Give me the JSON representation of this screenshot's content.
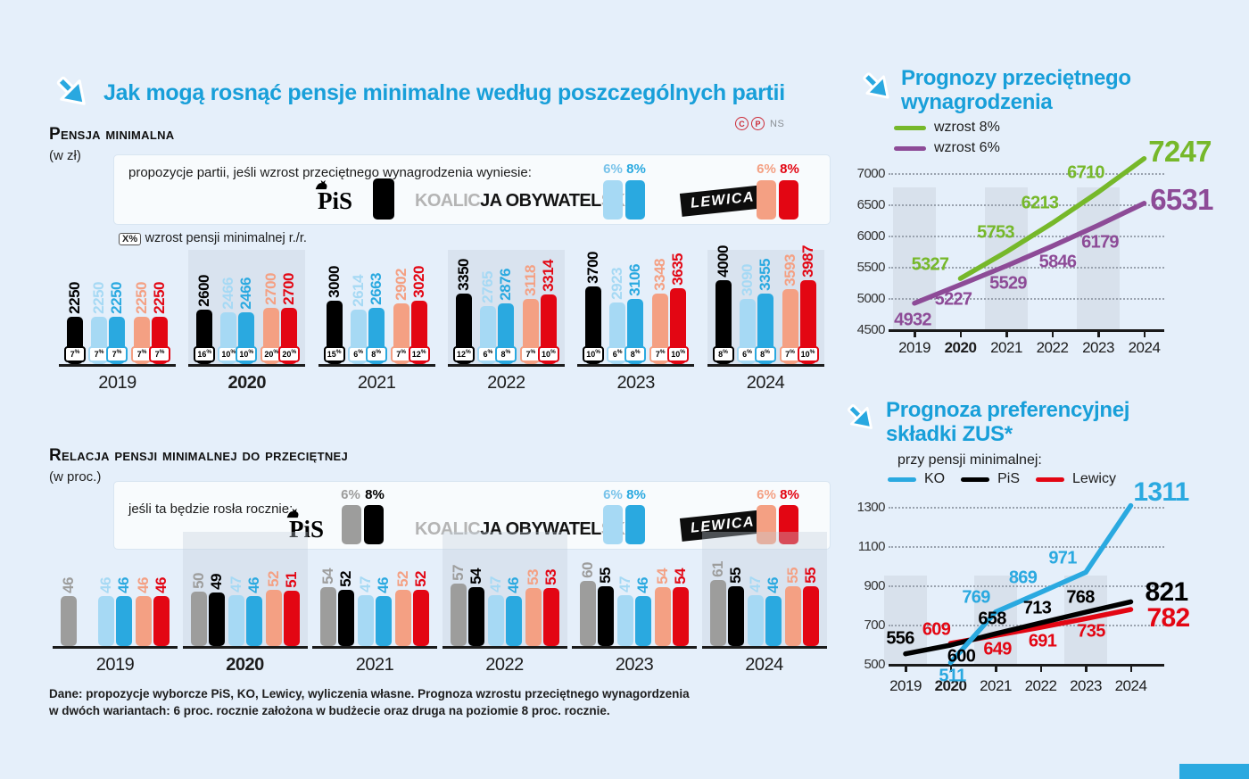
{
  "page": {
    "title": "Jak mogą rosnąć pensje minimalne według poszczególnych partii",
    "credit": {
      "c": "C",
      "p": "P",
      "ns": "NS"
    },
    "footer_lines": [
      "Dane: propozycje wyborcze PiS, KO, Lewicy, wyliczenia własne. Prognoza wzrostu przeciętnego wynagordzenia",
      "w dwóch wariantach: 6 proc. rocznie założona w budżecie oraz druga na poziomie 8 proc. rocznie."
    ]
  },
  "colors": {
    "accent_blue": "#189fd9",
    "pis_black": "#000000",
    "pis_gray": "#9d9d9c",
    "ko_light": "#a6d9f4",
    "ko_mid": "#79c3ea",
    "ko_dark": "#2aa9e0",
    "lewica_light": "#f4a083",
    "lewica_dark": "#e30613",
    "green": "#76b82a",
    "purple": "#8d4b97"
  },
  "legend1": {
    "intro": "propozycje partii, jeśli wzrost przeciętnego wynagrodzenia wyniesie:",
    "pis": "PiS",
    "ko_parts": [
      "KOALIC",
      "JA OBYWATEL",
      "SKA"
    ],
    "lewica": "LEWICA",
    "ko_pcts": [
      "6%",
      "8%"
    ],
    "lewica_pcts": [
      "6%",
      "8%"
    ],
    "note_box": "X%",
    "note": "wzrost pensji minimalnej r./r."
  },
  "legend2": {
    "intro": "jeśli ta będzie rosła rocznie:",
    "pis": "PiS",
    "ko_parts": [
      "KOALIC",
      "JA OBYWATEL",
      "SKA"
    ],
    "lewica": "LEWICA",
    "pis_pcts": [
      "6%",
      "8%"
    ],
    "ko_pcts": [
      "6%",
      "8%"
    ],
    "lewica_pcts": [
      "6%",
      "8%"
    ]
  },
  "right_top": {
    "title_lines": [
      "Prognozy przeciętnego",
      "wynagrodzenia"
    ]
  },
  "right_bottom": {
    "title_lines": [
      "Prognoza preferencyjnej",
      "składki ZUS*"
    ],
    "subtitle": "przy pensji minimalnej:"
  },
  "chart_data": [
    {
      "type": "bar",
      "title": "Pensja minimalna",
      "unit": "(w zł)",
      "categories": [
        "2019",
        "2020",
        "2021",
        "2022",
        "2023",
        "2024"
      ],
      "bold_category": "2020",
      "series": [
        {
          "name": "PiS",
          "color": "#000000",
          "values": [
            2250,
            2600,
            3000,
            3350,
            3700,
            4000
          ],
          "growth": [
            "7%",
            "16%",
            "15%",
            "12%",
            "10%",
            "8%"
          ]
        },
        {
          "name": "KO wzrost 6%",
          "color": "#a6d9f4",
          "values": [
            2250,
            2466,
            2614,
            2765,
            2923,
            3090
          ],
          "growth": [
            "7%",
            "10%",
            "6%",
            "6%",
            "6%",
            "6%"
          ]
        },
        {
          "name": "KO wzrost 8%",
          "color": "#2aa9e0",
          "values": [
            2250,
            2466,
            2663,
            2876,
            3106,
            3355
          ],
          "growth": [
            "7%",
            "10%",
            "8%",
            "8%",
            "8%",
            "8%"
          ]
        },
        {
          "name": "Lewica wzrost 6%",
          "color": "#f4a083",
          "values": [
            2250,
            2700,
            2902,
            3118,
            3348,
            3593
          ],
          "growth": [
            "7%",
            "20%",
            "7%",
            "7%",
            "7%",
            "7%"
          ]
        },
        {
          "name": "Lewica wzrost 8%",
          "color": "#e30613",
          "values": [
            2250,
            2700,
            3020,
            3314,
            3635,
            3987
          ],
          "growth": [
            "7%",
            "20%",
            "12%",
            "10%",
            "10%",
            "10%"
          ]
        }
      ]
    },
    {
      "type": "bar",
      "title": "Relacja pensji minimalnej do przeciętnej",
      "unit": "(w proc.)",
      "categories": [
        "2019",
        "2020",
        "2021",
        "2022",
        "2023",
        "2024"
      ],
      "bold_category": "2020",
      "series": [
        {
          "name": "PiS 6%",
          "color": "#9d9d9c",
          "values": [
            46,
            50,
            54,
            57,
            60,
            61
          ]
        },
        {
          "name": "PiS 8%",
          "color": "#000000",
          "values": [
            null,
            49,
            52,
            54,
            55,
            55
          ]
        },
        {
          "name": "KO 6%",
          "color": "#a6d9f4",
          "values": [
            46,
            47,
            47,
            47,
            47,
            47
          ]
        },
        {
          "name": "KO 8%",
          "color": "#2aa9e0",
          "values": [
            46,
            46,
            46,
            46,
            46,
            46
          ]
        },
        {
          "name": "Lewica 6%",
          "color": "#f4a083",
          "values": [
            46,
            52,
            52,
            53,
            54,
            55
          ]
        },
        {
          "name": "Lewica 8%",
          "color": "#e30613",
          "values": [
            46,
            51,
            52,
            53,
            54,
            55
          ]
        }
      ]
    },
    {
      "type": "line",
      "title": "Prognozy przeciętnego wynagrodzenia",
      "x": [
        "2019",
        "2020",
        "2021",
        "2022",
        "2023",
        "2024"
      ],
      "bold_x": "2020",
      "yticks": [
        4500,
        5000,
        5500,
        6000,
        6500,
        7000
      ],
      "legend": [
        {
          "label": "wzrost 8%",
          "color": "#76b82a"
        },
        {
          "label": "wzrost 6%",
          "color": "#8d4b97"
        }
      ],
      "series": [
        {
          "name": "wzrost 6%",
          "color": "#8d4b97",
          "values": [
            4932,
            5227,
            5529,
            5846,
            6179,
            6531
          ]
        },
        {
          "name": "wzrost 8%",
          "color": "#76b82a",
          "values": [
            null,
            5327,
            5753,
            6213,
            6710,
            7247
          ]
        }
      ]
    },
    {
      "type": "line",
      "title": "Prognoza preferencyjnej składki ZUS*",
      "subtitle": "przy pensji minimalnej:",
      "x": [
        "2019",
        "2020",
        "2021",
        "2022",
        "2023",
        "2024"
      ],
      "bold_x": "2020",
      "yticks": [
        500,
        700,
        900,
        1100,
        1300
      ],
      "legend": [
        {
          "label": "KO",
          "color": "#2aa9e0"
        },
        {
          "label": "PiS",
          "color": "#000000"
        },
        {
          "label": "Lewicy",
          "color": "#e30613"
        }
      ],
      "series": [
        {
          "name": "Lewicy",
          "color": "#e30613",
          "values": [
            null,
            609,
            649,
            691,
            735,
            782
          ]
        },
        {
          "name": "PiS",
          "color": "#000000",
          "values": [
            556,
            600,
            658,
            713,
            768,
            821
          ]
        },
        {
          "name": "KO",
          "color": "#2aa9e0",
          "values": [
            null,
            511,
            769,
            869,
            971,
            1311
          ]
        }
      ]
    }
  ]
}
